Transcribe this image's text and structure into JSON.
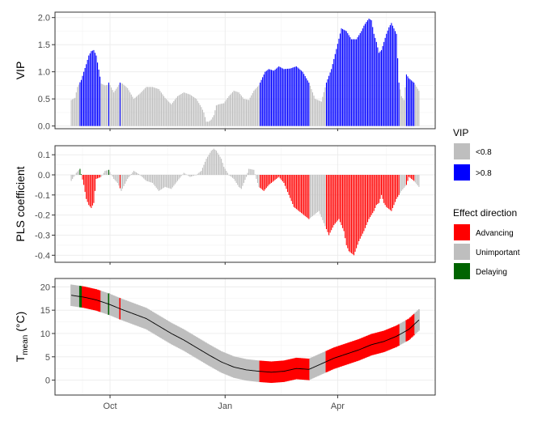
{
  "chart_data": [
    {
      "type": "bar",
      "panel": "vip",
      "ylabel": "VIP",
      "ylim": [
        -0.05,
        2.1
      ],
      "yticks": [
        "0.0",
        "0.5",
        "1.0",
        "1.5",
        "2.0"
      ],
      "ytick_values": [
        0,
        0.5,
        1.0,
        1.5,
        2.0
      ],
      "xticks": [
        "Oct",
        "Jan",
        "Apr"
      ],
      "xtick_days": [
        31,
        123,
        213
      ],
      "grid": true,
      "bar_width_days": 0.7,
      "x_start_day": 0,
      "x_end_day": 278,
      "color_threshold": 0.8,
      "colors": {
        "below": "#bebebe",
        "above": "#0000ff"
      },
      "profile_days": [
        0,
        3,
        5,
        8,
        10,
        12,
        14,
        16,
        18,
        20,
        24,
        27,
        29,
        30,
        34,
        37,
        39,
        41,
        45,
        50,
        55,
        60,
        65,
        70,
        75,
        80,
        85,
        90,
        95,
        100,
        104,
        106,
        108,
        110,
        112,
        114,
        116,
        118,
        122,
        126,
        130,
        134,
        138,
        142,
        146,
        150,
        152,
        155,
        158,
        162,
        166,
        170,
        175,
        180,
        185,
        190,
        195,
        200,
        204,
        208,
        212,
        216,
        220,
        224,
        228,
        232,
        234,
        236,
        238,
        240,
        242,
        244,
        246,
        248,
        252,
        254,
        256,
        260,
        262,
        264,
        266,
        268,
        270,
        274,
        278
      ],
      "profile_values": [
        0.48,
        0.52,
        0.72,
        0.85,
        1.0,
        1.14,
        1.3,
        1.38,
        1.4,
        1.3,
        0.78,
        0.75,
        0.76,
        0.8,
        0.62,
        0.72,
        0.8,
        0.78,
        0.7,
        0.5,
        0.6,
        0.72,
        0.72,
        0.68,
        0.52,
        0.4,
        0.55,
        0.62,
        0.58,
        0.5,
        0.35,
        0.25,
        0.08,
        0.08,
        0.12,
        0.2,
        0.38,
        0.4,
        0.42,
        0.55,
        0.65,
        0.62,
        0.5,
        0.48,
        0.65,
        0.75,
        0.85,
        1.0,
        1.05,
        1.02,
        1.1,
        1.05,
        1.06,
        1.1,
        1.0,
        0.8,
        0.5,
        0.45,
        0.8,
        1.05,
        1.42,
        1.8,
        1.75,
        1.6,
        1.6,
        1.75,
        1.85,
        1.92,
        1.98,
        1.95,
        1.7,
        1.55,
        1.35,
        1.4,
        1.7,
        1.82,
        1.9,
        1.7,
        0.8,
        0.55,
        0.48,
        0.95,
        0.88,
        0.8,
        0.65
      ]
    },
    {
      "type": "bar",
      "panel": "pls",
      "ylabel": "PLS coefficient",
      "ylim": [
        -0.435,
        0.145
      ],
      "yticks": [
        "0.1",
        "0.0",
        "-0.1",
        "-0.2",
        "-0.3",
        "-0.4"
      ],
      "ytick_values": [
        0.1,
        0.0,
        -0.1,
        -0.2,
        -0.3,
        -0.4
      ],
      "grid": true,
      "colors": {
        "advancing": "#ff0000",
        "unimportant": "#bebebe",
        "delaying": "#006400"
      },
      "profile_days": [
        0,
        4,
        7,
        10,
        12,
        14,
        16,
        18,
        20,
        24,
        27,
        30,
        34,
        37,
        40,
        45,
        50,
        55,
        60,
        65,
        70,
        75,
        80,
        85,
        90,
        95,
        100,
        104,
        108,
        112,
        114,
        116,
        118,
        120,
        122,
        126,
        130,
        134,
        136,
        138,
        140,
        142,
        146,
        148,
        150,
        154,
        158,
        162,
        166,
        170,
        174,
        178,
        182,
        186,
        190,
        194,
        198,
        202,
        206,
        210,
        214,
        218,
        220,
        222,
        226,
        230,
        234,
        238,
        242,
        244,
        246,
        248,
        250,
        252,
        256,
        260,
        264,
        268,
        270,
        274,
        278
      ],
      "profile_values": [
        -0.03,
        0.01,
        0.03,
        -0.05,
        -0.12,
        -0.15,
        -0.165,
        -0.14,
        -0.02,
        -0.01,
        0.02,
        0.025,
        -0.02,
        -0.04,
        -0.08,
        -0.02,
        0.02,
        0.0,
        -0.03,
        -0.04,
        -0.08,
        -0.06,
        -0.07,
        -0.03,
        0.01,
        -0.01,
        0.0,
        0.02,
        0.08,
        0.12,
        0.13,
        0.12,
        0.1,
        0.08,
        0.04,
        0.0,
        -0.02,
        -0.06,
        -0.07,
        -0.04,
        -0.01,
        0.03,
        0.025,
        -0.02,
        -0.06,
        -0.08,
        -0.05,
        -0.03,
        -0.01,
        -0.04,
        -0.1,
        -0.16,
        -0.18,
        -0.2,
        -0.22,
        -0.2,
        -0.18,
        -0.24,
        -0.3,
        -0.25,
        -0.22,
        -0.28,
        -0.35,
        -0.38,
        -0.4,
        -0.33,
        -0.28,
        -0.22,
        -0.18,
        -0.15,
        -0.14,
        -0.1,
        -0.14,
        -0.16,
        -0.18,
        -0.12,
        -0.08,
        -0.05,
        -0.01,
        -0.03,
        -0.06
      ]
    },
    {
      "type": "area",
      "panel": "temperature",
      "ylabel": "T",
      "ylabel_subscript": "mean",
      "ylabel_unit": " (°C)",
      "ylim": [
        -3.2,
        21.8
      ],
      "yticks": [
        "0",
        "5",
        "10",
        "15",
        "20"
      ],
      "ytick_values": [
        0,
        5,
        10,
        15,
        20
      ],
      "grid": true,
      "mean_days": [
        0,
        10,
        20,
        30,
        40,
        50,
        60,
        70,
        80,
        90,
        100,
        110,
        120,
        130,
        140,
        150,
        160,
        170,
        180,
        190,
        200,
        210,
        220,
        230,
        240,
        250,
        260,
        270,
        278
      ],
      "mean_values": [
        18.2,
        17.8,
        17.2,
        16.3,
        15.2,
        14.2,
        13.2,
        11.6,
        10.0,
        8.6,
        7.0,
        5.4,
        3.9,
        2.8,
        2.2,
        1.9,
        1.7,
        1.9,
        2.5,
        2.3,
        3.5,
        4.7,
        5.6,
        6.5,
        7.6,
        8.3,
        9.4,
        10.9,
        12.9
      ],
      "band_halfwidth": 2.3,
      "band_colors": {
        "advancing": "#ff0000",
        "unimportant": "#bebebe",
        "delaying": "#006400"
      },
      "line_color": "#000000"
    }
  ],
  "legend": {
    "vip": {
      "title": "VIP",
      "items": [
        {
          "label": "<0.8",
          "color": "#bebebe"
        },
        {
          "label": ">0.8",
          "color": "#0000ff"
        }
      ]
    },
    "effect": {
      "title": "Effect direction",
      "items": [
        {
          "label": "Advancing",
          "color": "#ff0000"
        },
        {
          "label": "Unimportant",
          "color": "#bebebe"
        },
        {
          "label": "Delaying",
          "color": "#006400"
        }
      ]
    }
  }
}
